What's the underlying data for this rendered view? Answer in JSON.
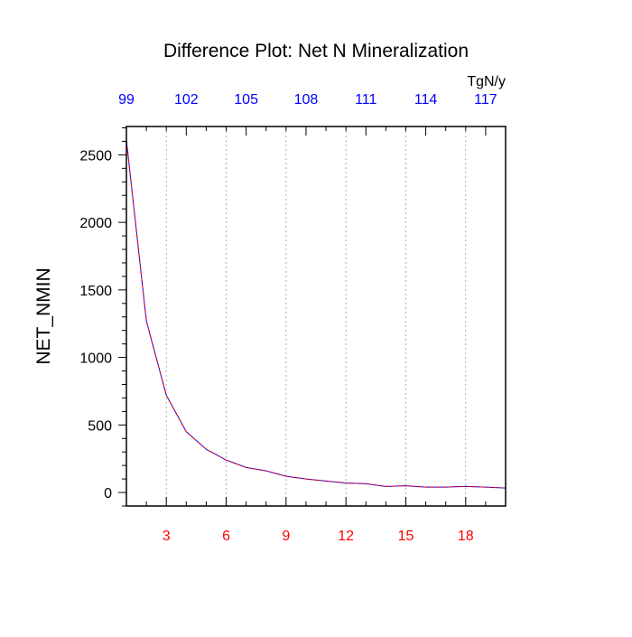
{
  "chart_data": {
    "type": "line",
    "title": "Difference Plot: Net N Mineralization",
    "ylabel": "NET_NMIN",
    "top_axis_unit": "TgN/y",
    "xlim": [
      1,
      20
    ],
    "ylim": [
      -100,
      2710
    ],
    "grid": "vertical dotted at bottom ticks",
    "bottom_ticks": [
      3,
      6,
      9,
      12,
      15,
      18
    ],
    "bottom_tick_labels": [
      "3",
      "6",
      "9",
      "12",
      "15",
      "18"
    ],
    "bottom_tick_color": "#ff0000",
    "top_ticks": [
      1,
      4,
      7,
      10,
      13,
      16,
      19
    ],
    "top_tick_labels": [
      "99",
      "102",
      "105",
      "108",
      "111",
      "114",
      "117"
    ],
    "top_tick_color": "#0000ff",
    "y_ticks": [
      0,
      500,
      1000,
      1500,
      2000,
      2500
    ],
    "y_tick_labels": [
      "0",
      "500",
      "1000",
      "1500",
      "2000",
      "2500"
    ],
    "series": [
      {
        "color": "#0000ff",
        "dash": "solid",
        "x": [
          1,
          2,
          3,
          4,
          5,
          6,
          7,
          8,
          9,
          10,
          11,
          12,
          13,
          14,
          15,
          16,
          17,
          18,
          19,
          20
        ],
        "y": [
          2610,
          1270,
          720,
          450,
          320,
          240,
          185,
          160,
          120,
          100,
          85,
          70,
          65,
          45,
          50,
          40,
          40,
          45,
          40,
          33
        ]
      },
      {
        "color": "#ff0000",
        "dash": "dashed",
        "x": [
          1,
          2,
          3,
          4,
          5,
          6,
          7,
          8,
          9,
          10,
          11,
          12,
          13,
          14,
          15,
          16,
          17,
          18,
          19,
          20
        ],
        "y": [
          2610,
          1270,
          720,
          450,
          320,
          240,
          185,
          160,
          120,
          100,
          85,
          70,
          65,
          45,
          50,
          40,
          40,
          45,
          40,
          33
        ]
      }
    ]
  }
}
